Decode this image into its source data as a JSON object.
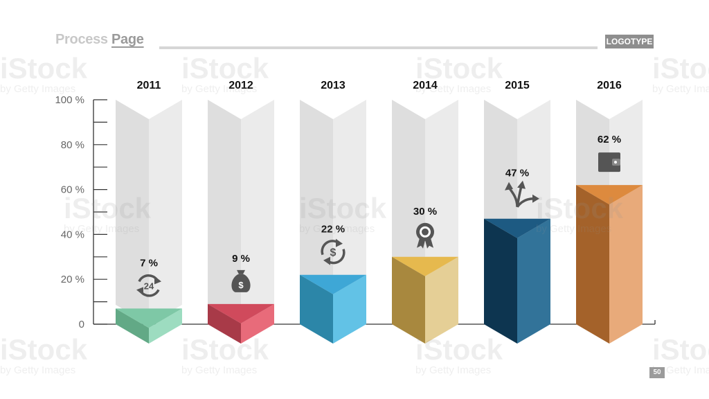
{
  "header": {
    "title_plain": "Process",
    "title_accent": "Page",
    "logo": "LOGOTYPE"
  },
  "footer": {
    "page_number": "50"
  },
  "watermark": {
    "brand": "iStock",
    "byline": "by Getty Images"
  },
  "colors": {
    "track": "#e6e6e6",
    "axis": "#333333",
    "tick_text": "#666666",
    "icon": "#555555"
  },
  "chart_data": {
    "type": "bar",
    "categories": [
      "2011",
      "2012",
      "2013",
      "2014",
      "2015",
      "2016"
    ],
    "values": [
      7,
      9,
      22,
      30,
      47,
      62
    ],
    "value_labels": [
      "7 %",
      "9 %",
      "22 %",
      "30 %",
      "47 %",
      "62 %"
    ],
    "icons": [
      "clock-24-icon",
      "money-bag-icon",
      "dollar-refresh-icon",
      "award-badge-icon",
      "arrows-split-icon",
      "wallet-icon"
    ],
    "colors": [
      {
        "left": "#62a986",
        "right": "#9ddcc0",
        "top": "#7ec8a6"
      },
      {
        "left": "#a83a48",
        "right": "#e86b7a",
        "top": "#d04a5c"
      },
      {
        "left": "#2c86a8",
        "right": "#62c2e6",
        "top": "#3ea7d6"
      },
      {
        "left": "#a8883e",
        "right": "#e5cf96",
        "top": "#e6b94e"
      },
      {
        "left": "#0d3550",
        "right": "#327399",
        "top": "#1d5a82"
      },
      {
        "left": "#a4622a",
        "right": "#e8aa7a",
        "top": "#dd8a3e"
      }
    ],
    "ylim": [
      0,
      100
    ],
    "ytick_labels": [
      "0",
      "20 %",
      "40 %",
      "60 %",
      "80 %",
      "100 %"
    ],
    "ytick_values": [
      0,
      20,
      40,
      60,
      80,
      100
    ],
    "xlabel": "",
    "ylabel": "",
    "grid": false
  }
}
